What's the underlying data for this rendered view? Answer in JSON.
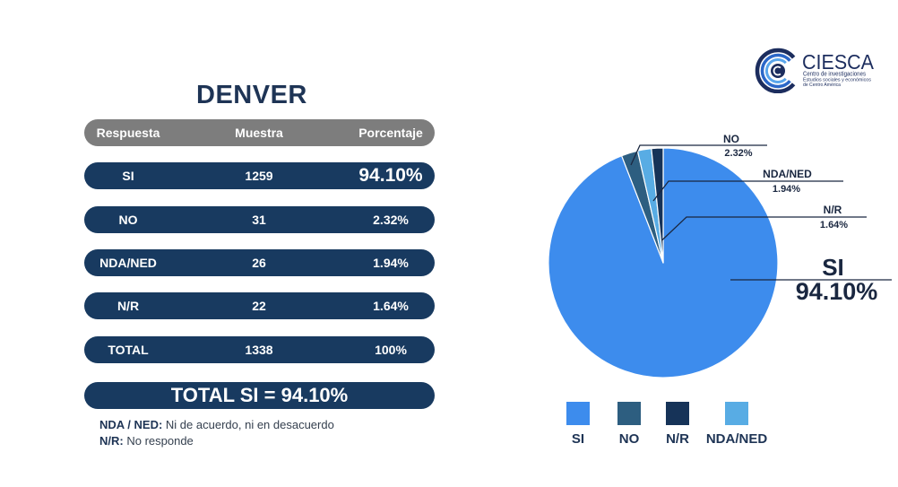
{
  "theme": {
    "primary": "#183a60",
    "header": "#7d7d7d",
    "title": "#1e3455"
  },
  "logo": {
    "name": "CIESCA",
    "line1": "Centro de investigaciones",
    "line2": "Estudios sociales y económicos",
    "line3": "de Centro América"
  },
  "title": "DENVER",
  "table": {
    "headers": [
      "Respuesta",
      "Muestra",
      "Porcentaje"
    ],
    "rows": [
      [
        "SI",
        "1259",
        "94.10%"
      ],
      [
        "NO",
        "31",
        "2.32%"
      ],
      [
        "NDA/NED",
        "26",
        "1.94%"
      ],
      [
        "N/R",
        "22",
        "1.64%"
      ],
      [
        "TOTAL",
        "1338",
        "100%"
      ]
    ],
    "summary": "TOTAL SI = 94.10%"
  },
  "footnotes": [
    {
      "term": "NDA / NED:",
      "text": "Ni de acuerdo, ni en desacuerdo"
    },
    {
      "term": "N/R:",
      "text": "No responde"
    }
  ],
  "chart_data": {
    "type": "pie",
    "categories": [
      "SI",
      "NO",
      "NDA/NED",
      "N/R"
    ],
    "values": [
      94.1,
      2.32,
      1.94,
      1.64
    ],
    "value_labels": [
      "94.10%",
      "2.32%",
      "1.94%",
      "1.64%"
    ],
    "colors": [
      "#3d8ced",
      "#2d5e80",
      "#58ace4",
      "#163358"
    ],
    "legend": {
      "position": "bottom",
      "items": [
        "SI",
        "NO",
        "N/R",
        "NDA/NED"
      ]
    }
  }
}
